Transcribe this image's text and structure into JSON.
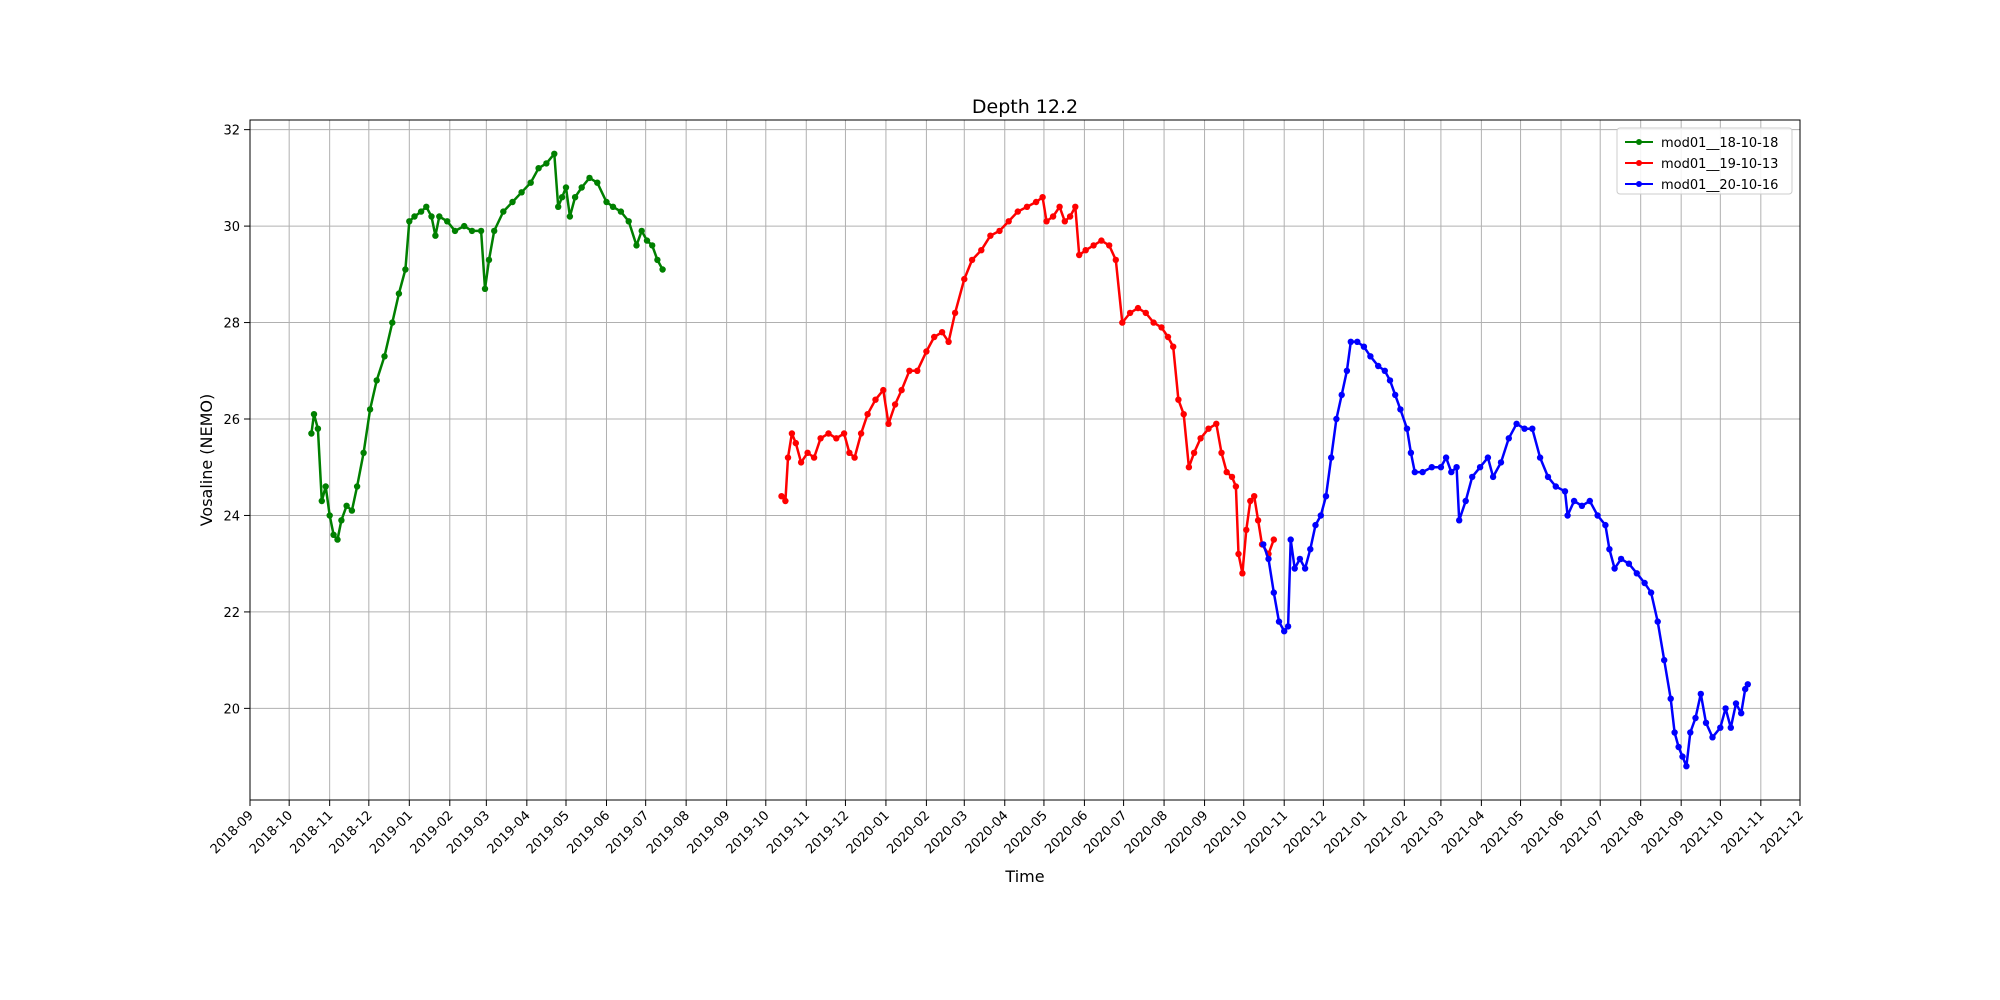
{
  "chart_data": {
    "type": "line",
    "title": "Depth 12.2",
    "xlabel": "Time",
    "ylabel": "Vosaline (NEMO)",
    "x_type": "date",
    "xlim": [
      "2018-09-01",
      "2021-12-01"
    ],
    "ylim": [
      18.1,
      32.2
    ],
    "yticks": [
      20,
      22,
      24,
      26,
      28,
      30,
      32
    ],
    "xticks": [
      "2018-09",
      "2018-10",
      "2018-11",
      "2018-12",
      "2019-01",
      "2019-02",
      "2019-03",
      "2019-04",
      "2019-05",
      "2019-06",
      "2019-07",
      "2019-08",
      "2019-09",
      "2019-10",
      "2019-11",
      "2019-12",
      "2020-01",
      "2020-02",
      "2020-03",
      "2020-04",
      "2020-05",
      "2020-06",
      "2020-07",
      "2020-08",
      "2020-09",
      "2020-10",
      "2020-11",
      "2020-12",
      "2021-01",
      "2021-02",
      "2021-03",
      "2021-04",
      "2021-05",
      "2021-06",
      "2021-07",
      "2021-08",
      "2021-09",
      "2021-10",
      "2021-11",
      "2021-12"
    ],
    "grid": true,
    "legend_position": "top-right",
    "series": [
      {
        "name": "mod01__18-10-18",
        "color": "#008000",
        "points": [
          [
            "2018-10-18",
            25.7
          ],
          [
            "2018-10-20",
            26.1
          ],
          [
            "2018-10-23",
            25.8
          ],
          [
            "2018-10-26",
            24.3
          ],
          [
            "2018-10-29",
            24.6
          ],
          [
            "2018-11-01",
            24.0
          ],
          [
            "2018-11-04",
            23.6
          ],
          [
            "2018-11-07",
            23.5
          ],
          [
            "2018-11-10",
            23.9
          ],
          [
            "2018-11-14",
            24.2
          ],
          [
            "2018-11-18",
            24.1
          ],
          [
            "2018-11-22",
            24.6
          ],
          [
            "2018-11-27",
            25.3
          ],
          [
            "2018-12-02",
            26.2
          ],
          [
            "2018-12-07",
            26.8
          ],
          [
            "2018-12-13",
            27.3
          ],
          [
            "2018-12-19",
            28.0
          ],
          [
            "2018-12-24",
            28.6
          ],
          [
            "2018-12-29",
            29.1
          ],
          [
            "2019-01-01",
            30.1
          ],
          [
            "2019-01-05",
            30.2
          ],
          [
            "2019-01-10",
            30.3
          ],
          [
            "2019-01-14",
            30.4
          ],
          [
            "2019-01-18",
            30.2
          ],
          [
            "2019-01-21",
            29.8
          ],
          [
            "2019-01-24",
            30.2
          ],
          [
            "2019-01-30",
            30.1
          ],
          [
            "2019-02-05",
            29.9
          ],
          [
            "2019-02-12",
            30.0
          ],
          [
            "2019-02-18",
            29.9
          ],
          [
            "2019-02-25",
            29.9
          ],
          [
            "2019-02-28",
            28.7
          ],
          [
            "2019-03-03",
            29.3
          ],
          [
            "2019-03-07",
            29.9
          ],
          [
            "2019-03-14",
            30.3
          ],
          [
            "2019-03-21",
            30.5
          ],
          [
            "2019-03-28",
            30.7
          ],
          [
            "2019-04-04",
            30.9
          ],
          [
            "2019-04-10",
            31.2
          ],
          [
            "2019-04-16",
            31.3
          ],
          [
            "2019-04-22",
            31.5
          ],
          [
            "2019-04-25",
            30.4
          ],
          [
            "2019-04-28",
            30.6
          ],
          [
            "2019-05-01",
            30.8
          ],
          [
            "2019-05-04",
            30.2
          ],
          [
            "2019-05-08",
            30.6
          ],
          [
            "2019-05-13",
            30.8
          ],
          [
            "2019-05-19",
            31.0
          ],
          [
            "2019-05-25",
            30.9
          ],
          [
            "2019-06-01",
            30.5
          ],
          [
            "2019-06-06",
            30.4
          ],
          [
            "2019-06-12",
            30.3
          ],
          [
            "2019-06-18",
            30.1
          ],
          [
            "2019-06-24",
            29.6
          ],
          [
            "2019-06-28",
            29.9
          ],
          [
            "2019-07-02",
            29.7
          ],
          [
            "2019-07-06",
            29.6
          ],
          [
            "2019-07-10",
            29.3
          ],
          [
            "2019-07-14",
            29.1
          ]
        ]
      },
      {
        "name": "mod01__19-10-13",
        "color": "#ff0000",
        "points": [
          [
            "2019-10-13",
            24.4
          ],
          [
            "2019-10-16",
            24.3
          ],
          [
            "2019-10-18",
            25.2
          ],
          [
            "2019-10-21",
            25.7
          ],
          [
            "2019-10-24",
            25.5
          ],
          [
            "2019-10-28",
            25.1
          ],
          [
            "2019-11-02",
            25.3
          ],
          [
            "2019-11-07",
            25.2
          ],
          [
            "2019-11-12",
            25.6
          ],
          [
            "2019-11-18",
            25.7
          ],
          [
            "2019-11-24",
            25.6
          ],
          [
            "2019-11-30",
            25.7
          ],
          [
            "2019-12-04",
            25.3
          ],
          [
            "2019-12-08",
            25.2
          ],
          [
            "2019-12-13",
            25.7
          ],
          [
            "2019-12-18",
            26.1
          ],
          [
            "2019-12-24",
            26.4
          ],
          [
            "2019-12-30",
            26.6
          ],
          [
            "2020-01-03",
            25.9
          ],
          [
            "2020-01-08",
            26.3
          ],
          [
            "2020-01-13",
            26.6
          ],
          [
            "2020-01-19",
            27.0
          ],
          [
            "2020-01-25",
            27.0
          ],
          [
            "2020-02-01",
            27.4
          ],
          [
            "2020-02-07",
            27.7
          ],
          [
            "2020-02-13",
            27.8
          ],
          [
            "2020-02-18",
            27.6
          ],
          [
            "2020-02-23",
            28.2
          ],
          [
            "2020-03-01",
            28.9
          ],
          [
            "2020-03-07",
            29.3
          ],
          [
            "2020-03-14",
            29.5
          ],
          [
            "2020-03-21",
            29.8
          ],
          [
            "2020-03-28",
            29.9
          ],
          [
            "2020-04-04",
            30.1
          ],
          [
            "2020-04-11",
            30.3
          ],
          [
            "2020-04-18",
            30.4
          ],
          [
            "2020-04-25",
            30.5
          ],
          [
            "2020-04-30",
            30.6
          ],
          [
            "2020-05-03",
            30.1
          ],
          [
            "2020-05-08",
            30.2
          ],
          [
            "2020-05-13",
            30.4
          ],
          [
            "2020-05-17",
            30.1
          ],
          [
            "2020-05-21",
            30.2
          ],
          [
            "2020-05-25",
            30.4
          ],
          [
            "2020-05-28",
            29.4
          ],
          [
            "2020-06-02",
            29.5
          ],
          [
            "2020-06-08",
            29.6
          ],
          [
            "2020-06-14",
            29.7
          ],
          [
            "2020-06-20",
            29.6
          ],
          [
            "2020-06-25",
            29.3
          ],
          [
            "2020-06-30",
            28.0
          ],
          [
            "2020-07-06",
            28.2
          ],
          [
            "2020-07-12",
            28.3
          ],
          [
            "2020-07-18",
            28.2
          ],
          [
            "2020-07-24",
            28.0
          ],
          [
            "2020-07-30",
            27.9
          ],
          [
            "2020-08-04",
            27.7
          ],
          [
            "2020-08-08",
            27.5
          ],
          [
            "2020-08-12",
            26.4
          ],
          [
            "2020-08-16",
            26.1
          ],
          [
            "2020-08-20",
            25.0
          ],
          [
            "2020-08-24",
            25.3
          ],
          [
            "2020-08-29",
            25.6
          ],
          [
            "2020-09-04",
            25.8
          ],
          [
            "2020-09-10",
            25.9
          ],
          [
            "2020-09-14",
            25.3
          ],
          [
            "2020-09-18",
            24.9
          ],
          [
            "2020-09-22",
            24.8
          ],
          [
            "2020-09-25",
            24.6
          ],
          [
            "2020-09-27",
            23.2
          ],
          [
            "2020-09-30",
            22.8
          ],
          [
            "2020-10-03",
            23.7
          ],
          [
            "2020-10-06",
            24.3
          ],
          [
            "2020-10-09",
            24.4
          ],
          [
            "2020-10-12",
            23.9
          ],
          [
            "2020-10-15",
            23.4
          ],
          [
            "2020-10-20",
            23.2
          ],
          [
            "2020-10-24",
            23.5
          ]
        ]
      },
      {
        "name": "mod01__20-10-16",
        "color": "#0000ff",
        "points": [
          [
            "2020-10-16",
            23.4
          ],
          [
            "2020-10-20",
            23.1
          ],
          [
            "2020-10-24",
            22.4
          ],
          [
            "2020-10-28",
            21.8
          ],
          [
            "2020-11-01",
            21.6
          ],
          [
            "2020-11-04",
            21.7
          ],
          [
            "2020-11-06",
            23.5
          ],
          [
            "2020-11-09",
            22.9
          ],
          [
            "2020-11-13",
            23.1
          ],
          [
            "2020-11-17",
            22.9
          ],
          [
            "2020-11-21",
            23.3
          ],
          [
            "2020-11-25",
            23.8
          ],
          [
            "2020-11-29",
            24.0
          ],
          [
            "2020-12-03",
            24.4
          ],
          [
            "2020-12-07",
            25.2
          ],
          [
            "2020-12-11",
            26.0
          ],
          [
            "2020-12-15",
            26.5
          ],
          [
            "2020-12-19",
            27.0
          ],
          [
            "2020-12-22",
            27.6
          ],
          [
            "2020-12-27",
            27.6
          ],
          [
            "2021-01-01",
            27.5
          ],
          [
            "2021-01-06",
            27.3
          ],
          [
            "2021-01-12",
            27.1
          ],
          [
            "2021-01-17",
            27.0
          ],
          [
            "2021-01-21",
            26.8
          ],
          [
            "2021-01-25",
            26.5
          ],
          [
            "2021-01-29",
            26.2
          ],
          [
            "2021-02-03",
            25.8
          ],
          [
            "2021-02-06",
            25.3
          ],
          [
            "2021-02-09",
            24.9
          ],
          [
            "2021-02-15",
            24.9
          ],
          [
            "2021-02-22",
            25.0
          ],
          [
            "2021-03-01",
            25.0
          ],
          [
            "2021-03-05",
            25.2
          ],
          [
            "2021-03-09",
            24.9
          ],
          [
            "2021-03-13",
            25.0
          ],
          [
            "2021-03-15",
            23.9
          ],
          [
            "2021-03-20",
            24.3
          ],
          [
            "2021-03-25",
            24.8
          ],
          [
            "2021-03-31",
            25.0
          ],
          [
            "2021-04-06",
            25.2
          ],
          [
            "2021-04-10",
            24.8
          ],
          [
            "2021-04-16",
            25.1
          ],
          [
            "2021-04-22",
            25.6
          ],
          [
            "2021-04-28",
            25.9
          ],
          [
            "2021-05-04",
            25.8
          ],
          [
            "2021-05-10",
            25.8
          ],
          [
            "2021-05-16",
            25.2
          ],
          [
            "2021-05-22",
            24.8
          ],
          [
            "2021-05-28",
            24.6
          ],
          [
            "2021-06-04",
            24.5
          ],
          [
            "2021-06-06",
            24.0
          ],
          [
            "2021-06-11",
            24.3
          ],
          [
            "2021-06-17",
            24.2
          ],
          [
            "2021-06-23",
            24.3
          ],
          [
            "2021-06-29",
            24.0
          ],
          [
            "2021-07-05",
            23.8
          ],
          [
            "2021-07-08",
            23.3
          ],
          [
            "2021-07-12",
            22.9
          ],
          [
            "2021-07-17",
            23.1
          ],
          [
            "2021-07-23",
            23.0
          ],
          [
            "2021-07-29",
            22.8
          ],
          [
            "2021-08-04",
            22.6
          ],
          [
            "2021-08-09",
            22.4
          ],
          [
            "2021-08-14",
            21.8
          ],
          [
            "2021-08-19",
            21.0
          ],
          [
            "2021-08-24",
            20.2
          ],
          [
            "2021-08-27",
            19.5
          ],
          [
            "2021-08-30",
            19.2
          ],
          [
            "2021-09-02",
            19.0
          ],
          [
            "2021-09-05",
            18.8
          ],
          [
            "2021-09-08",
            19.5
          ],
          [
            "2021-09-12",
            19.8
          ],
          [
            "2021-09-16",
            20.3
          ],
          [
            "2021-09-20",
            19.7
          ],
          [
            "2021-09-25",
            19.4
          ],
          [
            "2021-10-01",
            19.6
          ],
          [
            "2021-10-05",
            20.0
          ],
          [
            "2021-10-09",
            19.6
          ],
          [
            "2021-10-13",
            20.1
          ],
          [
            "2021-10-17",
            19.9
          ],
          [
            "2021-10-20",
            20.4
          ],
          [
            "2021-10-22",
            20.5
          ]
        ]
      }
    ]
  }
}
